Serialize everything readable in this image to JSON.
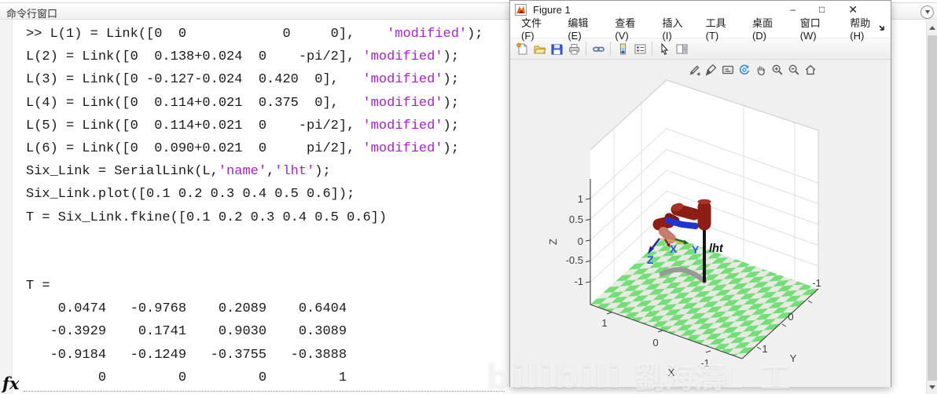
{
  "command_window": {
    "title": "命令行窗口",
    "prompt_indicator": "fx",
    "lines": [
      {
        "s": [
          [
            ">> L(1) = Link([0  0            0     0],    ",
            "code"
          ],
          [
            "'modified'",
            "str"
          ],
          [
            ");",
            "code"
          ]
        ]
      },
      {
        "s": [
          [
            "L(2) = Link([0  0.138+0.024  0    -pi/2], ",
            "code"
          ],
          [
            "'modified'",
            "str"
          ],
          [
            ");",
            "code"
          ]
        ]
      },
      {
        "s": [
          [
            "L(3) = Link([0 -0.127-0.024  0.420  0],   ",
            "code"
          ],
          [
            "'modified'",
            "str"
          ],
          [
            ");",
            "code"
          ]
        ]
      },
      {
        "s": [
          [
            "L(4) = Link([0  0.114+0.021  0.375  0],   ",
            "code"
          ],
          [
            "'modified'",
            "str"
          ],
          [
            ");",
            "code"
          ]
        ]
      },
      {
        "s": [
          [
            "L(5) = Link([0  0.114+0.021  0    -pi/2], ",
            "code"
          ],
          [
            "'modified'",
            "str"
          ],
          [
            ");",
            "code"
          ]
        ]
      },
      {
        "s": [
          [
            "L(6) = Link([0  0.090+0.021  0     pi/2], ",
            "code"
          ],
          [
            "'modified'",
            "str"
          ],
          [
            ");",
            "code"
          ]
        ]
      },
      {
        "s": [
          [
            "Six_Link = SerialLink(L,",
            "code"
          ],
          [
            "'name'",
            "str"
          ],
          [
            ",",
            "code"
          ],
          [
            "'lht'",
            "str"
          ],
          [
            ");",
            "code"
          ]
        ]
      },
      {
        "s": [
          [
            "Six_Link.plot([0.1 0.2 0.3 0.4 0.5 0.6]);",
            "code"
          ]
        ]
      },
      {
        "s": [
          [
            "T = Six_Link.fkine([0.1 0.2 0.3 0.4 0.5 0.6])",
            "code"
          ]
        ]
      },
      {
        "s": []
      },
      {
        "s": []
      },
      {
        "s": [
          [
            "T =",
            "code"
          ]
        ]
      },
      {
        "s": [
          [
            "    0.0474   -0.9768    0.2089    0.6404",
            "code"
          ]
        ]
      },
      {
        "s": [
          [
            "   -0.3929    0.1741    0.9030    0.3089",
            "code"
          ]
        ]
      },
      {
        "s": [
          [
            "   -0.9184   -0.1249   -0.3755   -0.3888",
            "code"
          ]
        ]
      },
      {
        "s": [
          [
            "         0         0         0         1",
            "code"
          ]
        ]
      }
    ]
  },
  "figure_window": {
    "title": "Figure 1",
    "menu_items": [
      "文件(F)",
      "编辑(E)",
      "查看(V)",
      "插入(I)",
      "工具(T)",
      "桌面(D)",
      "窗口(W)",
      "帮助(H)"
    ],
    "toolbar_icons": [
      "new-figure-icon",
      "open-file-icon",
      "save-figure-icon",
      "print-figure-icon",
      "link-plot-icon",
      "insert-colorbar-icon",
      "insert-legend-icon",
      "edit-plot-cursor-icon",
      "property-inspector-icon"
    ],
    "axes_toolbar": {
      "icons": [
        "export-icon",
        "brush-icon",
        "datatips-icon",
        "rotate-3d-icon",
        "pan-icon",
        "zoom-in-icon",
        "zoom-out-icon",
        "restore-view-icon"
      ],
      "active": "rotate-3d-icon",
      "active_color": "#2e8fd5"
    },
    "plot": {
      "robot_label": "lht",
      "axis": {
        "x": {
          "label": "X",
          "ticks": [
            "1",
            "0",
            "-1"
          ]
        },
        "y": {
          "label": "Y",
          "ticks": [
            "1",
            "0",
            "-1"
          ]
        },
        "z": {
          "label": "Z",
          "ticks": [
            "1",
            "0.5",
            "0",
            "-0.5",
            "-1"
          ]
        }
      },
      "frame_axis_labels": {
        "x": "X",
        "y": "Y",
        "z": "Z"
      },
      "floor_colors": {
        "green": "#74df78",
        "light": "#e9e9e4"
      },
      "robot_colors": {
        "link_dark_red": "#8e1d16",
        "link_highlight": "#c77c70",
        "joint_blue": "#1f35cf",
        "shadow_gray": "#999999"
      }
    }
  },
  "watermark": {
    "logo": "bilibili",
    "name": "劉海濤L",
    "partial": "工"
  },
  "colors": {
    "string_literal": "#a822cb",
    "code_text": "#1a1a1a",
    "canvas_bg": "#f0f0f0"
  }
}
